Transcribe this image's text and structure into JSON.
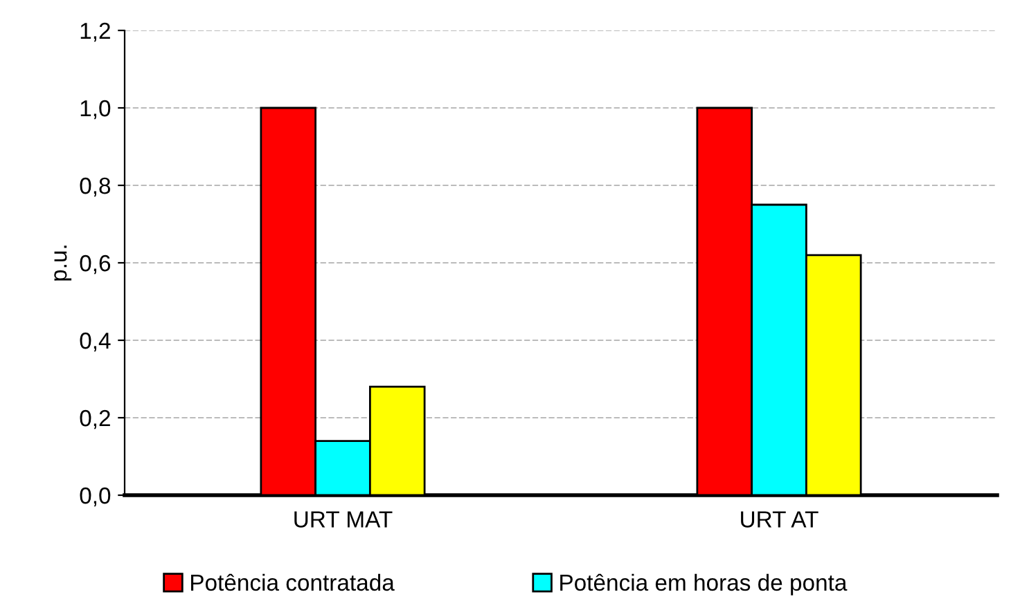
{
  "chart_data": {
    "type": "bar",
    "ylabel": "p.u.",
    "categories": [
      "URT MAT",
      "URT AT"
    ],
    "series": [
      {
        "name": "Potência contratada",
        "color": "#ff0000",
        "values": [
          1.0,
          1.0
        ]
      },
      {
        "name": "Potência em horas de ponta",
        "color": "#00ffff",
        "values": [
          0.14,
          0.75
        ]
      },
      {
        "color": "#ffff00",
        "values": [
          0.28,
          0.62
        ]
      }
    ],
    "ylim": [
      0,
      1.2
    ],
    "yticks": [
      {
        "value": 0,
        "label": "0,0"
      },
      {
        "value": 0.2,
        "label": "0,2"
      },
      {
        "value": 0.4,
        "label": "0,4"
      },
      {
        "value": 0.6,
        "label": "0,6"
      },
      {
        "value": 0.8,
        "label": "0,8"
      },
      {
        "value": 1.0,
        "label": "1,0"
      },
      {
        "value": 1.2,
        "label": "1,2"
      }
    ],
    "grid": "y",
    "legend": "bottom"
  }
}
